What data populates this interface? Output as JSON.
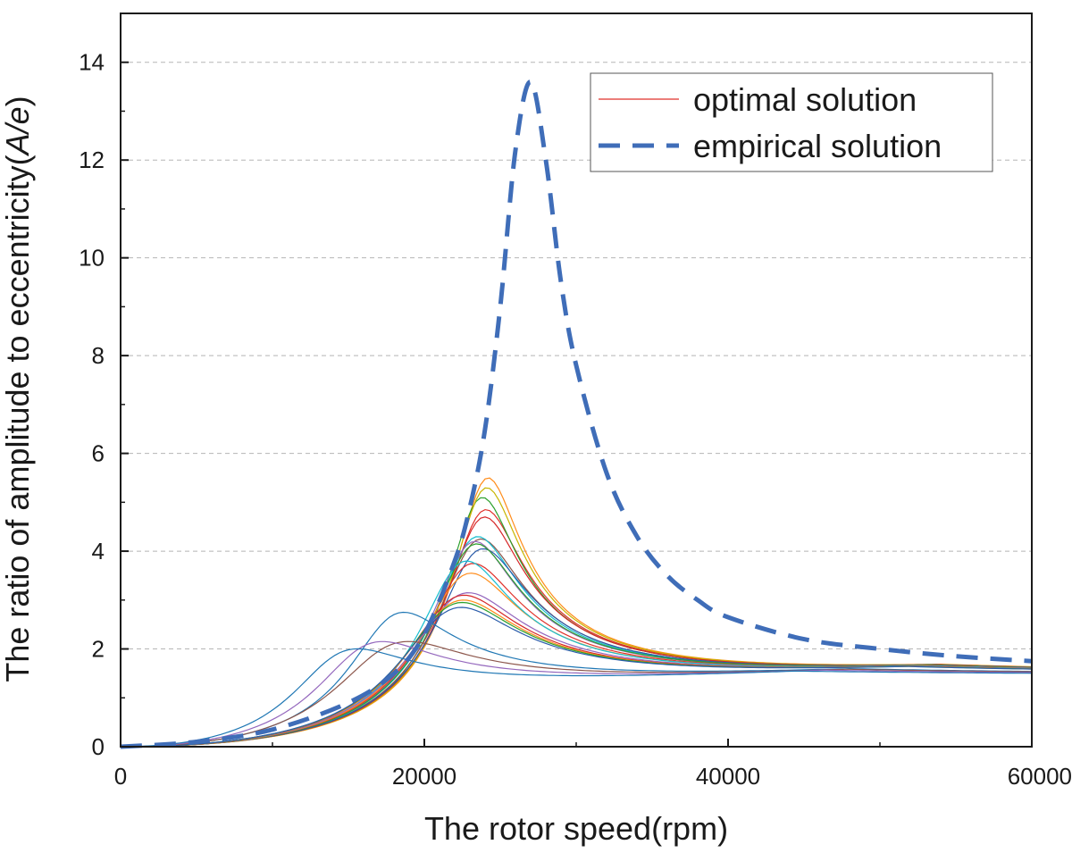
{
  "chart_data": {
    "type": "line",
    "title": "",
    "xlabel": "The rotor speed(rpm)",
    "ylabel_prefix": "The ratio of amplitude to eccentricity(",
    "ylabel_italic": "A/e",
    "ylabel_suffix": ")",
    "xlim": [
      0,
      60000
    ],
    "ylim": [
      0,
      15
    ],
    "xticks": [
      0,
      20000,
      40000,
      60000
    ],
    "xtick_labels": [
      "0",
      "20000",
      "40000",
      "60000"
    ],
    "yticks": [
      0,
      2,
      4,
      6,
      8,
      10,
      12,
      14
    ],
    "ytick_labels": [
      "0",
      "2",
      "4",
      "6",
      "8",
      "10",
      "12",
      "14"
    ],
    "grid": "horizontal-dashed",
    "legend": {
      "position": "top-right",
      "entries": [
        {
          "label": "optimal solution",
          "color": "#e0312b",
          "style": "solid-thin"
        },
        {
          "label": "empirical solution",
          "color": "#3f6db8",
          "style": "dashed-thick"
        }
      ]
    },
    "series": [
      {
        "name": "empirical solution",
        "color": "#3f6db8",
        "style": "dashed",
        "x": [
          0,
          5000,
          10000,
          15000,
          18000,
          20000,
          22000,
          23000,
          24000,
          25000,
          26000,
          27000,
          28000,
          29000,
          30000,
          32000,
          34000,
          36000,
          38000,
          40000,
          45000,
          50000,
          55000,
          60000
        ],
        "y": [
          0,
          0.1,
          0.35,
          0.9,
          1.5,
          2.3,
          3.8,
          4.9,
          6.5,
          9.0,
          12.2,
          13.6,
          12.0,
          9.5,
          7.8,
          5.6,
          4.3,
          3.5,
          3.0,
          2.65,
          2.2,
          2.0,
          1.85,
          1.75
        ]
      }
    ],
    "optimal_curves": [
      {
        "color": "#e0312b",
        "peak_x": 23800,
        "peak_y": 4.85
      },
      {
        "color": "#ff8c1a",
        "peak_x": 24000,
        "peak_y": 5.5
      },
      {
        "color": "#2ca02c",
        "peak_x": 23600,
        "peak_y": 5.1
      },
      {
        "color": "#c8b400",
        "peak_x": 23900,
        "peak_y": 5.3
      },
      {
        "color": "#d62728",
        "peak_x": 23700,
        "peak_y": 4.7
      },
      {
        "color": "#8c564b",
        "peak_x": 23400,
        "peak_y": 4.25
      },
      {
        "color": "#17becf",
        "peak_x": 23200,
        "peak_y": 4.3
      },
      {
        "color": "#2a5caa",
        "peak_x": 23500,
        "peak_y": 4.05
      },
      {
        "color": "#9467bd",
        "peak_x": 23000,
        "peak_y": 4.2
      },
      {
        "color": "#2ca02c",
        "peak_x": 23100,
        "peak_y": 4.15
      },
      {
        "color": "#e0312b",
        "peak_x": 22800,
        "peak_y": 3.75
      },
      {
        "color": "#ff8c1a",
        "peak_x": 22600,
        "peak_y": 3.55
      },
      {
        "color": "#17becf",
        "peak_x": 22400,
        "peak_y": 3.8
      },
      {
        "color": "#9467bd",
        "peak_x": 22300,
        "peak_y": 3.15
      },
      {
        "color": "#d62728",
        "peak_x": 22000,
        "peak_y": 3.1
      },
      {
        "color": "#ff8c1a",
        "peak_x": 21900,
        "peak_y": 3.0
      },
      {
        "color": "#2ca02c",
        "peak_x": 21800,
        "peak_y": 2.95
      },
      {
        "color": "#2a5caa",
        "peak_x": 21700,
        "peak_y": 2.85
      },
      {
        "color": "#1f77b4",
        "peak_x": 18000,
        "peak_y": 2.75
      },
      {
        "color": "#8c564b",
        "peak_x": 17800,
        "peak_y": 2.15
      },
      {
        "color": "#9467bd",
        "peak_x": 16200,
        "peak_y": 2.15
      },
      {
        "color": "#1f77b4",
        "peak_x": 14500,
        "peak_y": 2.0
      }
    ]
  }
}
